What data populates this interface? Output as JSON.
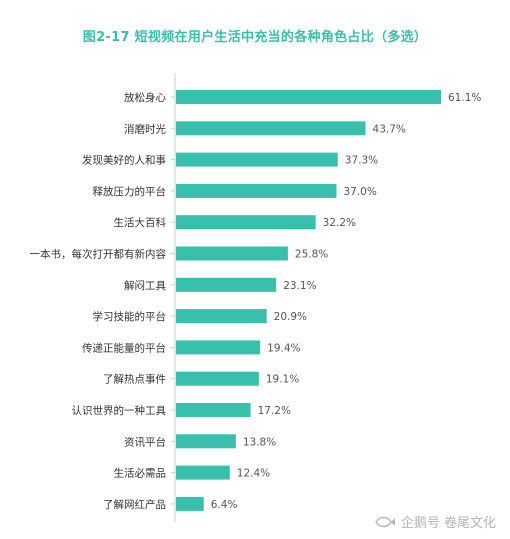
{
  "title": "图2-17  短视频在用户生活中充当的各种角色占比（多选）",
  "chart_data": {
    "type": "bar",
    "orientation": "horizontal",
    "title": "图2-17  短视频在用户生活中充当的各种角色占比（多选）",
    "categories": [
      "放松身心",
      "消磨时光",
      "发现美好的人和事",
      "释放压力的平台",
      "生活大百科",
      "一本书，每次打开都有新内容",
      "解闷工具",
      "学习技能的平台",
      "传递正能量的平台",
      "了解热点事件",
      "认识世界的一种工具",
      "资讯平台",
      "生活必需品",
      "了解网红产品"
    ],
    "values": [
      61.1,
      43.7,
      37.3,
      37.0,
      32.2,
      25.8,
      23.1,
      20.9,
      19.4,
      19.1,
      17.2,
      13.8,
      12.4,
      6.4
    ],
    "value_labels": [
      "61.1%",
      "43.7%",
      "37.3%",
      "37.0%",
      "32.2%",
      "25.8%",
      "23.1%",
      "20.9%",
      "19.4%",
      "19.1%",
      "17.2%",
      "13.8%",
      "12.4%",
      "6.4%"
    ],
    "xlim": [
      0,
      61.1
    ],
    "grid": false,
    "legend": "none",
    "bar_color": "#39c0ad",
    "axis_color": "#cccccc"
  },
  "watermark": {
    "text": "企鹅号 卷尾文化",
    "icon": "fish-logo-icon"
  }
}
